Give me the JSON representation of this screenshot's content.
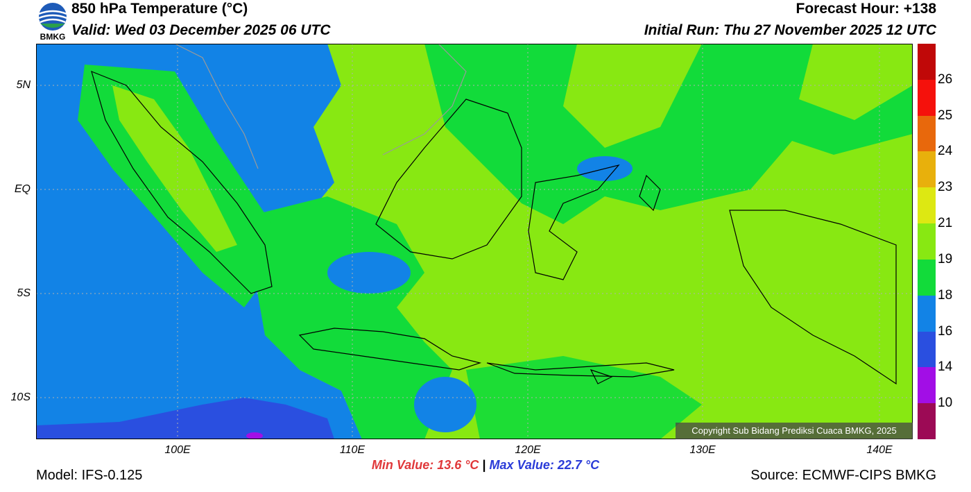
{
  "header": {
    "title": "850 hPa Temperature (°C)",
    "valid": "Valid: Wed 03 December 2025 06 UTC",
    "forecast_hour": "Forecast Hour: +138",
    "initial_run": "Initial Run: Thu 27 November 2025 12 UTC"
  },
  "logo": {
    "text": "BMKG"
  },
  "map": {
    "lat_labels": [
      "5N",
      "EQ",
      "5S",
      "10S"
    ],
    "lon_labels": [
      "100E",
      "110E",
      "120E",
      "130E",
      "140E"
    ],
    "copyright": "Copyright Sub Bidang Prediksi Cuaca BMKG, 2025"
  },
  "colorbar": {
    "labels": [
      "10",
      "14",
      "16",
      "18",
      "19",
      "21",
      "23",
      "24",
      "25",
      "26"
    ],
    "colors": [
      "#9c0a55",
      "#a20ee6",
      "#2a4fe0",
      "#1283e6",
      "#12db3a",
      "#88e812",
      "#dde812",
      "#e8b00c",
      "#e8680c",
      "#f5110c",
      "#c00808"
    ]
  },
  "footer": {
    "min_value": "Min Value: 13.6 °C",
    "separator": "|",
    "max_value": "Max Value: 22.7 °C",
    "model": "Model: IFS-0.125",
    "source": "Source: ECMWF-CIPS BMKG"
  }
}
